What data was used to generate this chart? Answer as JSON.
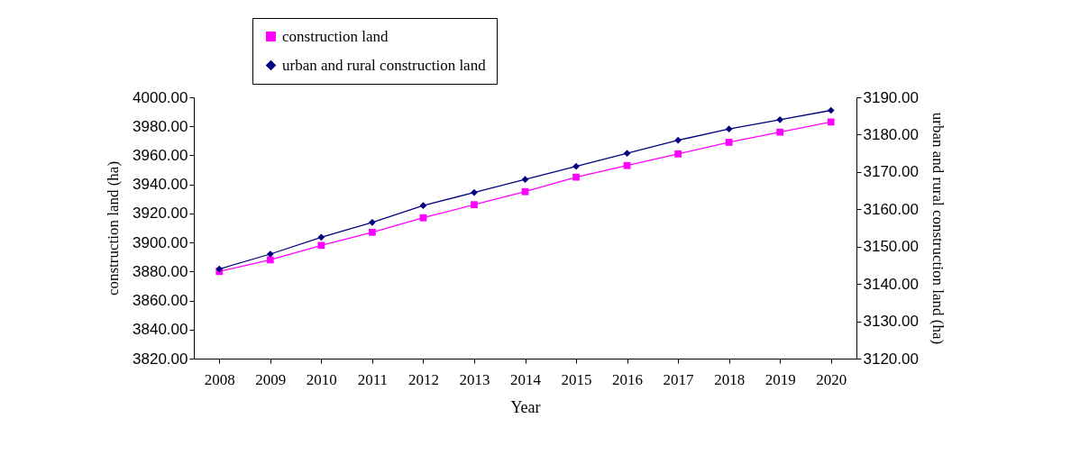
{
  "chart_data": {
    "type": "line",
    "xlabel": "Year",
    "ylabel": "construction land (ha)",
    "y2label": "urban and rural construction land (ha)",
    "categories": [
      "2008",
      "2009",
      "2010",
      "2011",
      "2012",
      "2013",
      "2014",
      "2015",
      "2016",
      "2017",
      "2018",
      "2019",
      "2020"
    ],
    "series": [
      {
        "name": "construction land",
        "color": "#ff00ff",
        "marker": "square",
        "axis": "y",
        "values": [
          3880,
          3888,
          3898,
          3907,
          3917,
          3926,
          3935,
          3945,
          3953,
          3961,
          3969,
          3976,
          3983
        ]
      },
      {
        "name": "urban and rural construction land",
        "color": "#000080",
        "marker": "diamond",
        "axis": "y2",
        "values": [
          3144,
          3148,
          3152.5,
          3156.5,
          3161,
          3164.5,
          3168,
          3171.5,
          3175,
          3178.5,
          3181.5,
          3184,
          3186.5
        ]
      }
    ],
    "ylim": [
      3820,
      4000
    ],
    "yticks": [
      {
        "value": 3820,
        "label": "3820.00"
      },
      {
        "value": 3840,
        "label": "3840.00"
      },
      {
        "value": 3860,
        "label": "3860.00"
      },
      {
        "value": 3880,
        "label": "3880.00"
      },
      {
        "value": 3900,
        "label": "3900.00"
      },
      {
        "value": 3920,
        "label": "3920.00"
      },
      {
        "value": 3940,
        "label": "3940.00"
      },
      {
        "value": 3960,
        "label": "3960.00"
      },
      {
        "value": 3980,
        "label": "3980.00"
      },
      {
        "value": 4000,
        "label": "4000.00"
      }
    ],
    "y2lim": [
      3120,
      3190
    ],
    "y2ticks": [
      {
        "value": 3120,
        "label": "3120.00"
      },
      {
        "value": 3130,
        "label": "3130.00"
      },
      {
        "value": 3140,
        "label": "3140.00"
      },
      {
        "value": 3150,
        "label": "3150.00"
      },
      {
        "value": 3160,
        "label": "3160.00"
      },
      {
        "value": 3170,
        "label": "3170.00"
      },
      {
        "value": 3180,
        "label": "3180.00"
      },
      {
        "value": 3190,
        "label": "3190.00"
      }
    ],
    "grid": false,
    "legend": "top"
  }
}
